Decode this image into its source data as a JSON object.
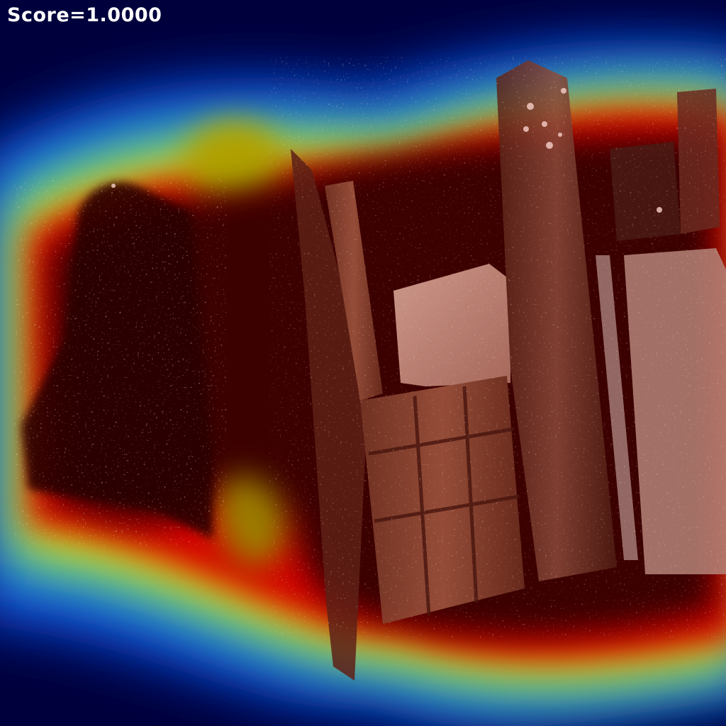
{
  "overlay": {
    "score_text": "Score=1.0000"
  },
  "colors": {
    "heat_low": "#00003c",
    "heat_mid": "#1fb6d6",
    "heat_warm": "#e8d800",
    "heat_hot": "#c80000",
    "heat_peak": "#3a0000"
  }
}
